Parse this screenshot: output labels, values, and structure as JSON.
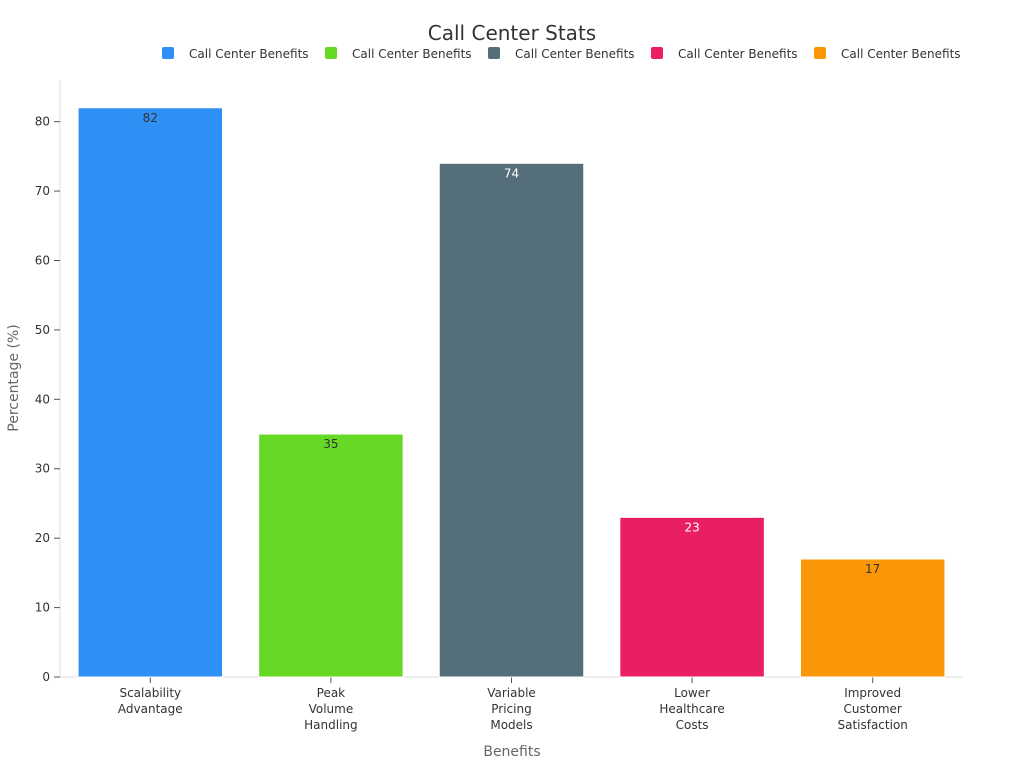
{
  "chart_data": {
    "type": "bar",
    "title": "Call Center Stats",
    "xlabel": "Benefits",
    "ylabel": "Percentage (%)",
    "ylim": [
      0,
      86
    ],
    "yticks": [
      0,
      10,
      20,
      30,
      40,
      50,
      60,
      70,
      80
    ],
    "grid": false,
    "legend_position": "top",
    "categories": [
      [
        "Scalability",
        "Advantage"
      ],
      [
        "Peak",
        "Volume",
        "Handling"
      ],
      [
        "Variable",
        "Pricing",
        "Models"
      ],
      [
        "Lower",
        "Healthcare",
        "Costs"
      ],
      [
        "Improved",
        "Customer",
        "Satisfaction"
      ]
    ],
    "values": [
      82,
      35,
      74,
      23,
      17
    ],
    "colors": [
      "#2e90f5",
      "#66d926",
      "#546e7a",
      "#e91e63",
      "#fb9706"
    ],
    "value_label_colors": [
      "#333333",
      "#333333",
      "#ffffff",
      "#ffffff",
      "#333333"
    ],
    "legend": [
      "Call Center Benefits",
      "Call Center Benefits",
      "Call Center Benefits",
      "Call Center Benefits",
      "Call Center Benefits"
    ]
  }
}
